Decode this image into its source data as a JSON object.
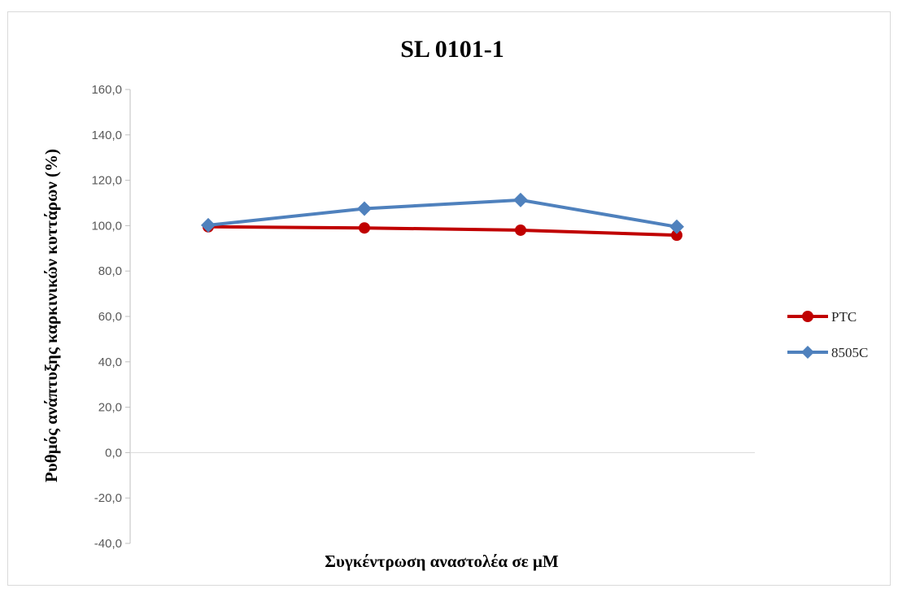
{
  "chart_data": {
    "type": "line",
    "title": "SL 0101-1",
    "xlabel": "Συγκέντρωση αναστολέα σε μM",
    "ylabel": "Ρυθμός ανάπτυξης καρκινικών κυττάρων (%)",
    "ylim": [
      -40,
      160
    ],
    "ytick_step": 20,
    "yticks": [
      "-40,0",
      "-20,0",
      "0,0",
      "20,0",
      "40,0",
      "60,0",
      "80,0",
      "100,0",
      "120,0",
      "140,0",
      "160,0"
    ],
    "x": [
      1,
      2,
      3,
      4
    ],
    "xtick_labels_visible": false,
    "grid": false,
    "legend": "right",
    "series": [
      {
        "name": "PTC",
        "color": "#c00000",
        "marker": "circle",
        "values": [
          99.5,
          99.0,
          98.0,
          95.8
        ]
      },
      {
        "name": "8505C",
        "color": "#4f81bd",
        "marker": "diamond",
        "values": [
          100.2,
          107.5,
          111.3,
          99.5
        ]
      }
    ]
  }
}
